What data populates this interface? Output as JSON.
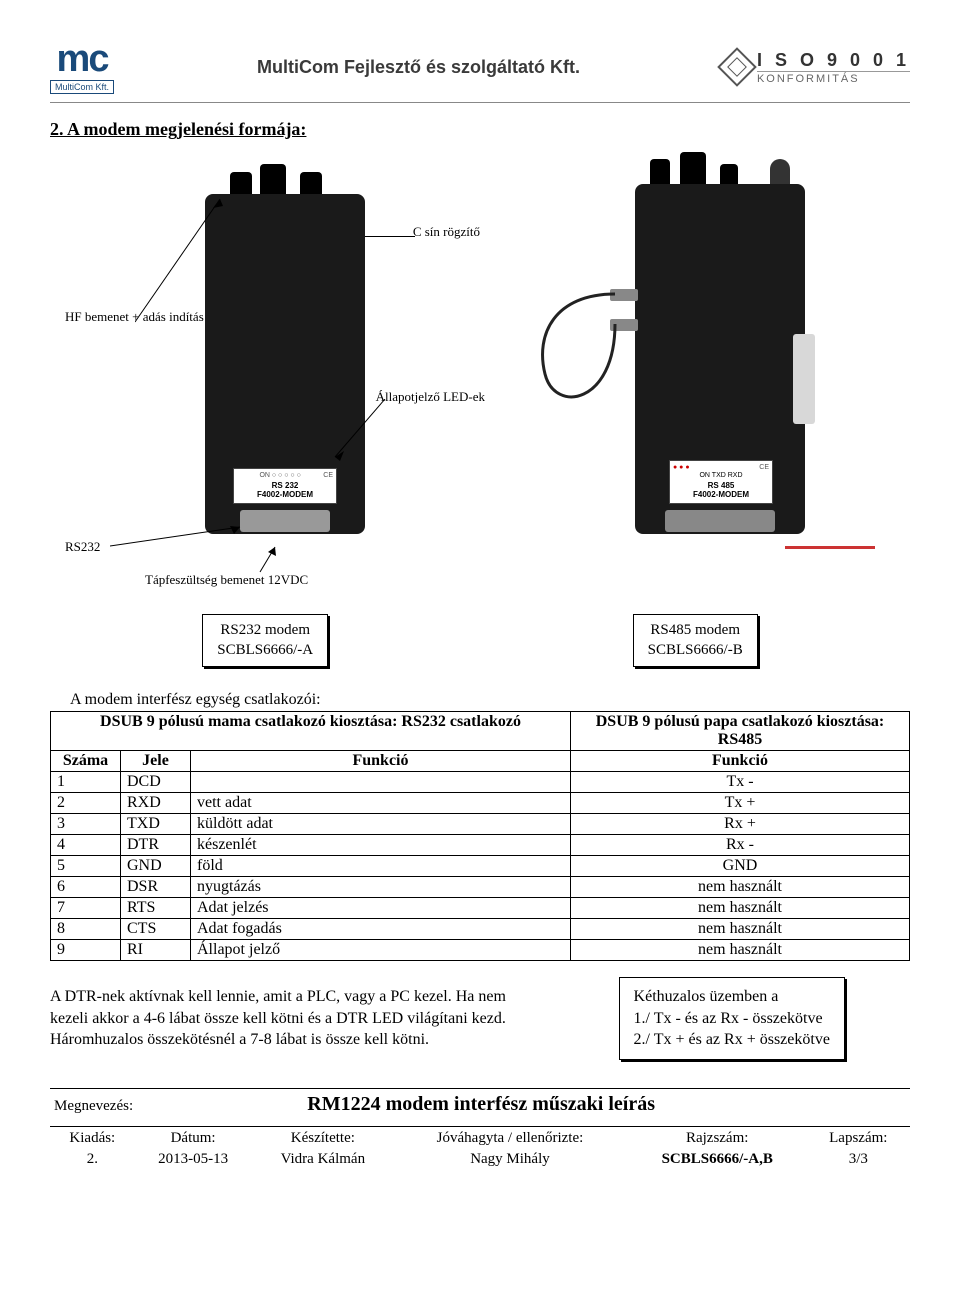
{
  "header": {
    "logo_main": "mc",
    "logo_sub": "MultiCom Kft.",
    "company": "MultiCom Fejlesztő és szolgáltató Kft.",
    "iso_main": "I S O 9 0 0 1",
    "iso_sub": "KONFORMITÁS"
  },
  "section_title": "2.  A modem megjelenési formája:",
  "annotations": {
    "c_sin": "C sín rögzítő",
    "hf": "HF bemenet + adás indítás",
    "leds": "Állapotjelző LED-ek",
    "rs232": "RS232",
    "tap": "Tápfeszültség bemenet 12VDC"
  },
  "plate_left": {
    "line1": "RS 232",
    "line2": "F4002-MODEM"
  },
  "plate_right": {
    "line1": "RS 485",
    "line2": "F4002-MODEM"
  },
  "captions": {
    "left_title": "RS232 modem",
    "left_code": "SCBLS6666/-A",
    "right_title": "RS485 modem",
    "right_code": "SCBLS6666/-B"
  },
  "table_intro": "A modem interfész egység csatlakozói:",
  "table": {
    "header_left": "DSUB 9 pólusú mama csatlakozó kiosztása: RS232 csatlakozó",
    "header_right": "DSUB 9 pólusú papa csatlakozó kiosztása: RS485",
    "cols": {
      "szama": "Száma",
      "jele": "Jele",
      "funkcio": "Funkció",
      "funkcio2": "Funkció"
    },
    "rows": [
      {
        "n": "1",
        "jele": "DCD",
        "f1": "",
        "f2": "Tx -"
      },
      {
        "n": "2",
        "jele": "RXD",
        "f1": "vett adat",
        "f2": "Tx +"
      },
      {
        "n": "3",
        "jele": "TXD",
        "f1": "küldött adat",
        "f2": "Rx +"
      },
      {
        "n": "4",
        "jele": "DTR",
        "f1": "készenlét",
        "f2": "Rx -"
      },
      {
        "n": "5",
        "jele": "GND",
        "f1": "föld",
        "f2": "GND"
      },
      {
        "n": "6",
        "jele": "DSR",
        "f1": "nyugtázás",
        "f2": "nem használt"
      },
      {
        "n": "7",
        "jele": "RTS",
        "f1": "Adat jelzés",
        "f2": "nem használt"
      },
      {
        "n": "8",
        "jele": "CTS",
        "f1": "Adat fogadás",
        "f2": "nem használt"
      },
      {
        "n": "9",
        "jele": "RI",
        "f1": "Állapot jelző",
        "f2": "nem használt"
      }
    ]
  },
  "note_left": "A DTR-nek aktívnak kell lennie, amit a PLC, vagy a PC kezel. Ha nem kezeli akkor a 4-6 lábat össze kell kötni és a DTR LED világítani kezd. Háromhuzalos összekötésnél  a 7-8 lábat is össze kell kötni.",
  "note_right": {
    "line1": "Kéthuzalos üzemben a",
    "line2": "1./ Tx - és az Rx - összekötve",
    "line3": "2./ Tx + és az Rx + összekötve"
  },
  "footer": {
    "megnevezes": "Megnevezés:",
    "title": "RM1224 modem interfész műszaki leírás",
    "labels": {
      "kiadas": "Kiadás:",
      "datum": "Dátum:",
      "keszitette": "Készítette:",
      "jovahagy": "Jóváhagyta / ellenőrizte:",
      "rajzszam": "Rajzszám:",
      "lapszam": "Lapszám:"
    },
    "values": {
      "kiadas": "2.",
      "datum": "2013-05-13",
      "keszitette": "Vidra Kálmán",
      "jovahagy": "Nagy Mihály",
      "rajzszam": "SCBLS6666/-A,B",
      "lapszam": "3/3"
    }
  }
}
